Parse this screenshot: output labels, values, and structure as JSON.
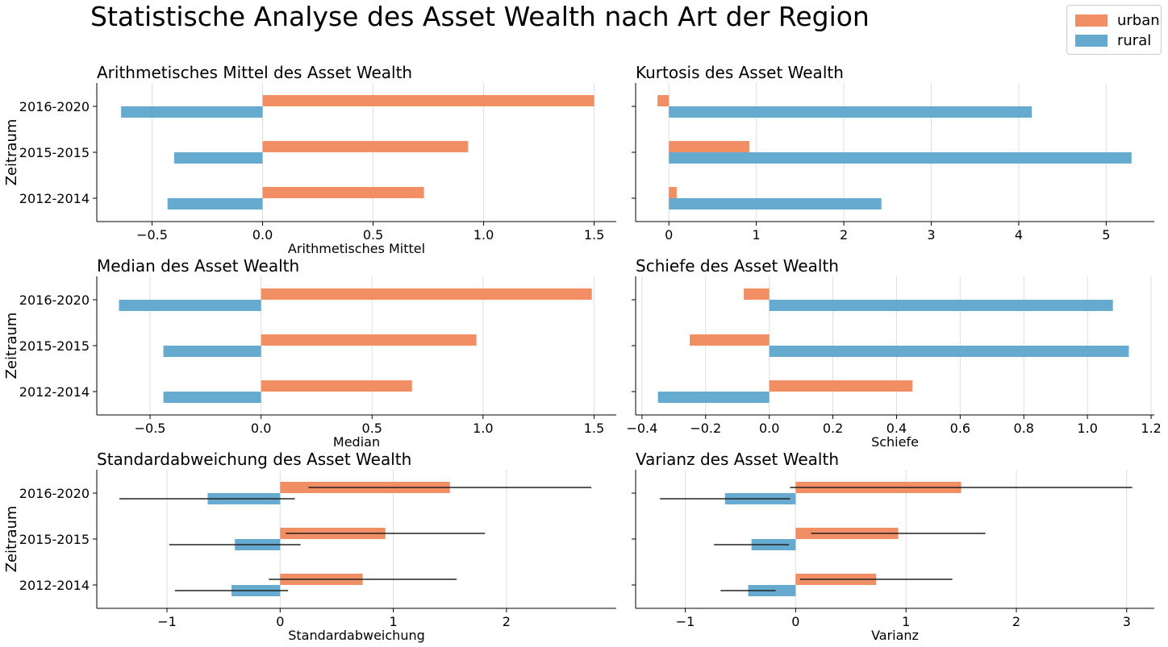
{
  "suptitle": "Statistische Analyse des Asset Wealth nach Art der Region",
  "colors": {
    "urban": "#f28e63",
    "rural": "#67aad0"
  },
  "legend": [
    {
      "label": "urban",
      "color": "#f28e63"
    },
    {
      "label": "rural",
      "color": "#67aad0"
    }
  ],
  "chart_data": [
    {
      "type": "bar",
      "title": "Arithmetisches Mittel des Asset Wealth",
      "xlabel": "Arithmetisches Mittel",
      "ylabel": "Zeitraum",
      "categories": [
        "2012-2014",
        "2015-2015",
        "2016-2020"
      ],
      "xlim": [
        -0.75,
        1.6
      ],
      "xticks": [
        -0.5,
        0.0,
        0.5,
        1.0,
        1.5
      ],
      "xtick_labels": [
        "−0.5",
        "0.0",
        "0.5",
        "1.0",
        "1.5"
      ],
      "series": [
        {
          "name": "urban",
          "values": [
            0.73,
            0.93,
            1.5
          ]
        },
        {
          "name": "rural",
          "values": [
            -0.43,
            -0.4,
            -0.64
          ]
        }
      ]
    },
    {
      "type": "bar",
      "title": "Kurtosis des Asset Wealth",
      "xlabel": "",
      "ylabel": "",
      "categories": [
        "2012-2014",
        "2015-2015",
        "2016-2020"
      ],
      "xlim": [
        -0.38,
        5.55
      ],
      "xticks": [
        0,
        1,
        2,
        3,
        4,
        5
      ],
      "xtick_labels": [
        "0",
        "1",
        "2",
        "3",
        "4",
        "5"
      ],
      "series": [
        {
          "name": "urban",
          "values": [
            0.09,
            0.92,
            -0.13
          ]
        },
        {
          "name": "rural",
          "values": [
            2.43,
            5.29,
            4.15
          ]
        }
      ]
    },
    {
      "type": "bar",
      "title": "Median des Asset Wealth",
      "xlabel": "Median",
      "ylabel": "Zeitraum",
      "categories": [
        "2012-2014",
        "2015-2015",
        "2016-2020"
      ],
      "xlim": [
        -0.74,
        1.6
      ],
      "xticks": [
        -0.5,
        0.0,
        0.5,
        1.0,
        1.5
      ],
      "xtick_labels": [
        "−0.5",
        "0.0",
        "0.5",
        "1.0",
        "1.5"
      ],
      "series": [
        {
          "name": "urban",
          "values": [
            0.68,
            0.97,
            1.49
          ]
        },
        {
          "name": "rural",
          "values": [
            -0.44,
            -0.44,
            -0.64
          ]
        }
      ]
    },
    {
      "type": "bar",
      "title": "Schiefe des Asset Wealth",
      "xlabel": "Schiefe",
      "ylabel": "",
      "categories": [
        "2012-2014",
        "2015-2015",
        "2016-2020"
      ],
      "xlim": [
        -0.42,
        1.21
      ],
      "xticks": [
        -0.4,
        -0.2,
        0.0,
        0.2,
        0.4,
        0.6,
        0.8,
        1.0,
        1.2
      ],
      "xtick_labels": [
        "−0.4",
        "−0.2",
        "0.0",
        "0.2",
        "0.4",
        "0.6",
        "0.8",
        "1.0",
        "1.2"
      ],
      "series": [
        {
          "name": "urban",
          "values": [
            0.45,
            -0.25,
            -0.08
          ]
        },
        {
          "name": "rural",
          "values": [
            -0.35,
            1.13,
            1.08
          ]
        }
      ]
    },
    {
      "type": "bar",
      "title": "Standardabweichung des Asset Wealth",
      "xlabel": "Standardabweichung",
      "ylabel": "Zeitraum",
      "categories": [
        "2012-2014",
        "2015-2015",
        "2016-2020"
      ],
      "xlim": [
        -1.62,
        2.97
      ],
      "xticks": [
        -1,
        0,
        1,
        2
      ],
      "xtick_labels": [
        "−1",
        "0",
        "1",
        "2"
      ],
      "series": [
        {
          "name": "urban",
          "values": [
            0.73,
            0.93,
            1.5
          ],
          "error_lo": [
            -0.1,
            0.05,
            0.25
          ],
          "error_hi": [
            1.56,
            1.81,
            2.75
          ]
        },
        {
          "name": "rural",
          "values": [
            -0.43,
            -0.4,
            -0.64
          ],
          "error_lo": [
            -0.93,
            -0.98,
            -1.42
          ],
          "error_hi": [
            0.07,
            0.18,
            0.13
          ]
        }
      ]
    },
    {
      "type": "bar",
      "title": "Varianz des Asset Wealth",
      "xlabel": "Varianz",
      "ylabel": "",
      "categories": [
        "2012-2014",
        "2015-2015",
        "2016-2020"
      ],
      "xlim": [
        -1.45,
        3.25
      ],
      "xticks": [
        -1,
        0,
        1,
        2,
        3
      ],
      "xtick_labels": [
        "−1",
        "0",
        "1",
        "2",
        "3"
      ],
      "series": [
        {
          "name": "urban",
          "values": [
            0.73,
            0.93,
            1.5
          ],
          "error_lo": [
            0.04,
            0.14,
            -0.05
          ],
          "error_hi": [
            1.42,
            1.72,
            3.05
          ]
        },
        {
          "name": "rural",
          "values": [
            -0.43,
            -0.4,
            -0.64
          ],
          "error_lo": [
            -0.68,
            -0.74,
            -1.23
          ],
          "error_hi": [
            -0.18,
            -0.06,
            -0.05
          ]
        }
      ]
    }
  ]
}
